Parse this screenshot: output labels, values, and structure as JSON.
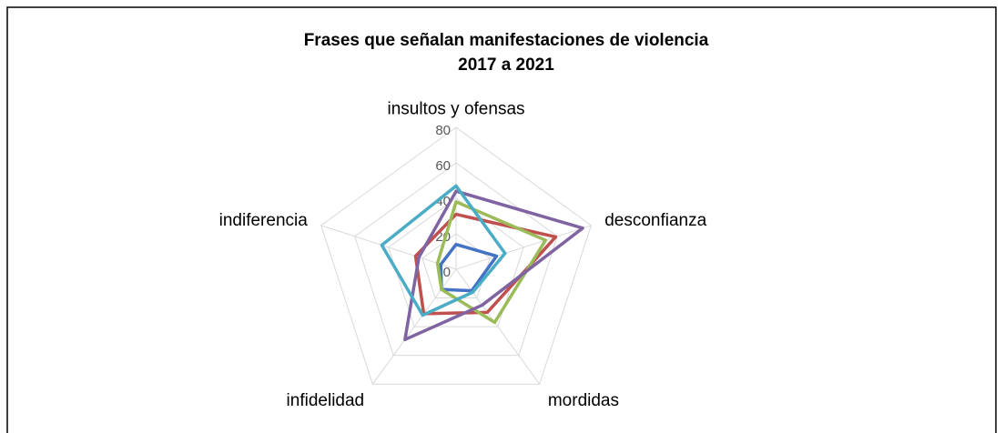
{
  "chart_data": {
    "type": "radar",
    "title": [
      "Frases  que señalan manifestaciones  de violencia",
      "2017  a 2021"
    ],
    "categories": [
      "insultos y ofensas",
      "desconfianza",
      "mordidas",
      "infidelidad",
      "indiferencia"
    ],
    "series": [
      {
        "color": "#4472c4",
        "values": [
          14,
          24,
          15,
          14,
          9
        ]
      },
      {
        "color": "#c0504d",
        "values": [
          31,
          59,
          30,
          31,
          24
        ]
      },
      {
        "color": "#9bbb59",
        "values": [
          38,
          53,
          37,
          14,
          11
        ]
      },
      {
        "color": "#8064a2",
        "values": [
          44,
          75,
          25,
          49,
          22
        ]
      },
      {
        "color": "#4bacc6",
        "values": [
          47,
          29,
          16,
          32,
          44
        ]
      }
    ],
    "ylim": [
      0,
      80
    ],
    "yticks": [
      0,
      20,
      40,
      60,
      80
    ],
    "grid": true
  }
}
